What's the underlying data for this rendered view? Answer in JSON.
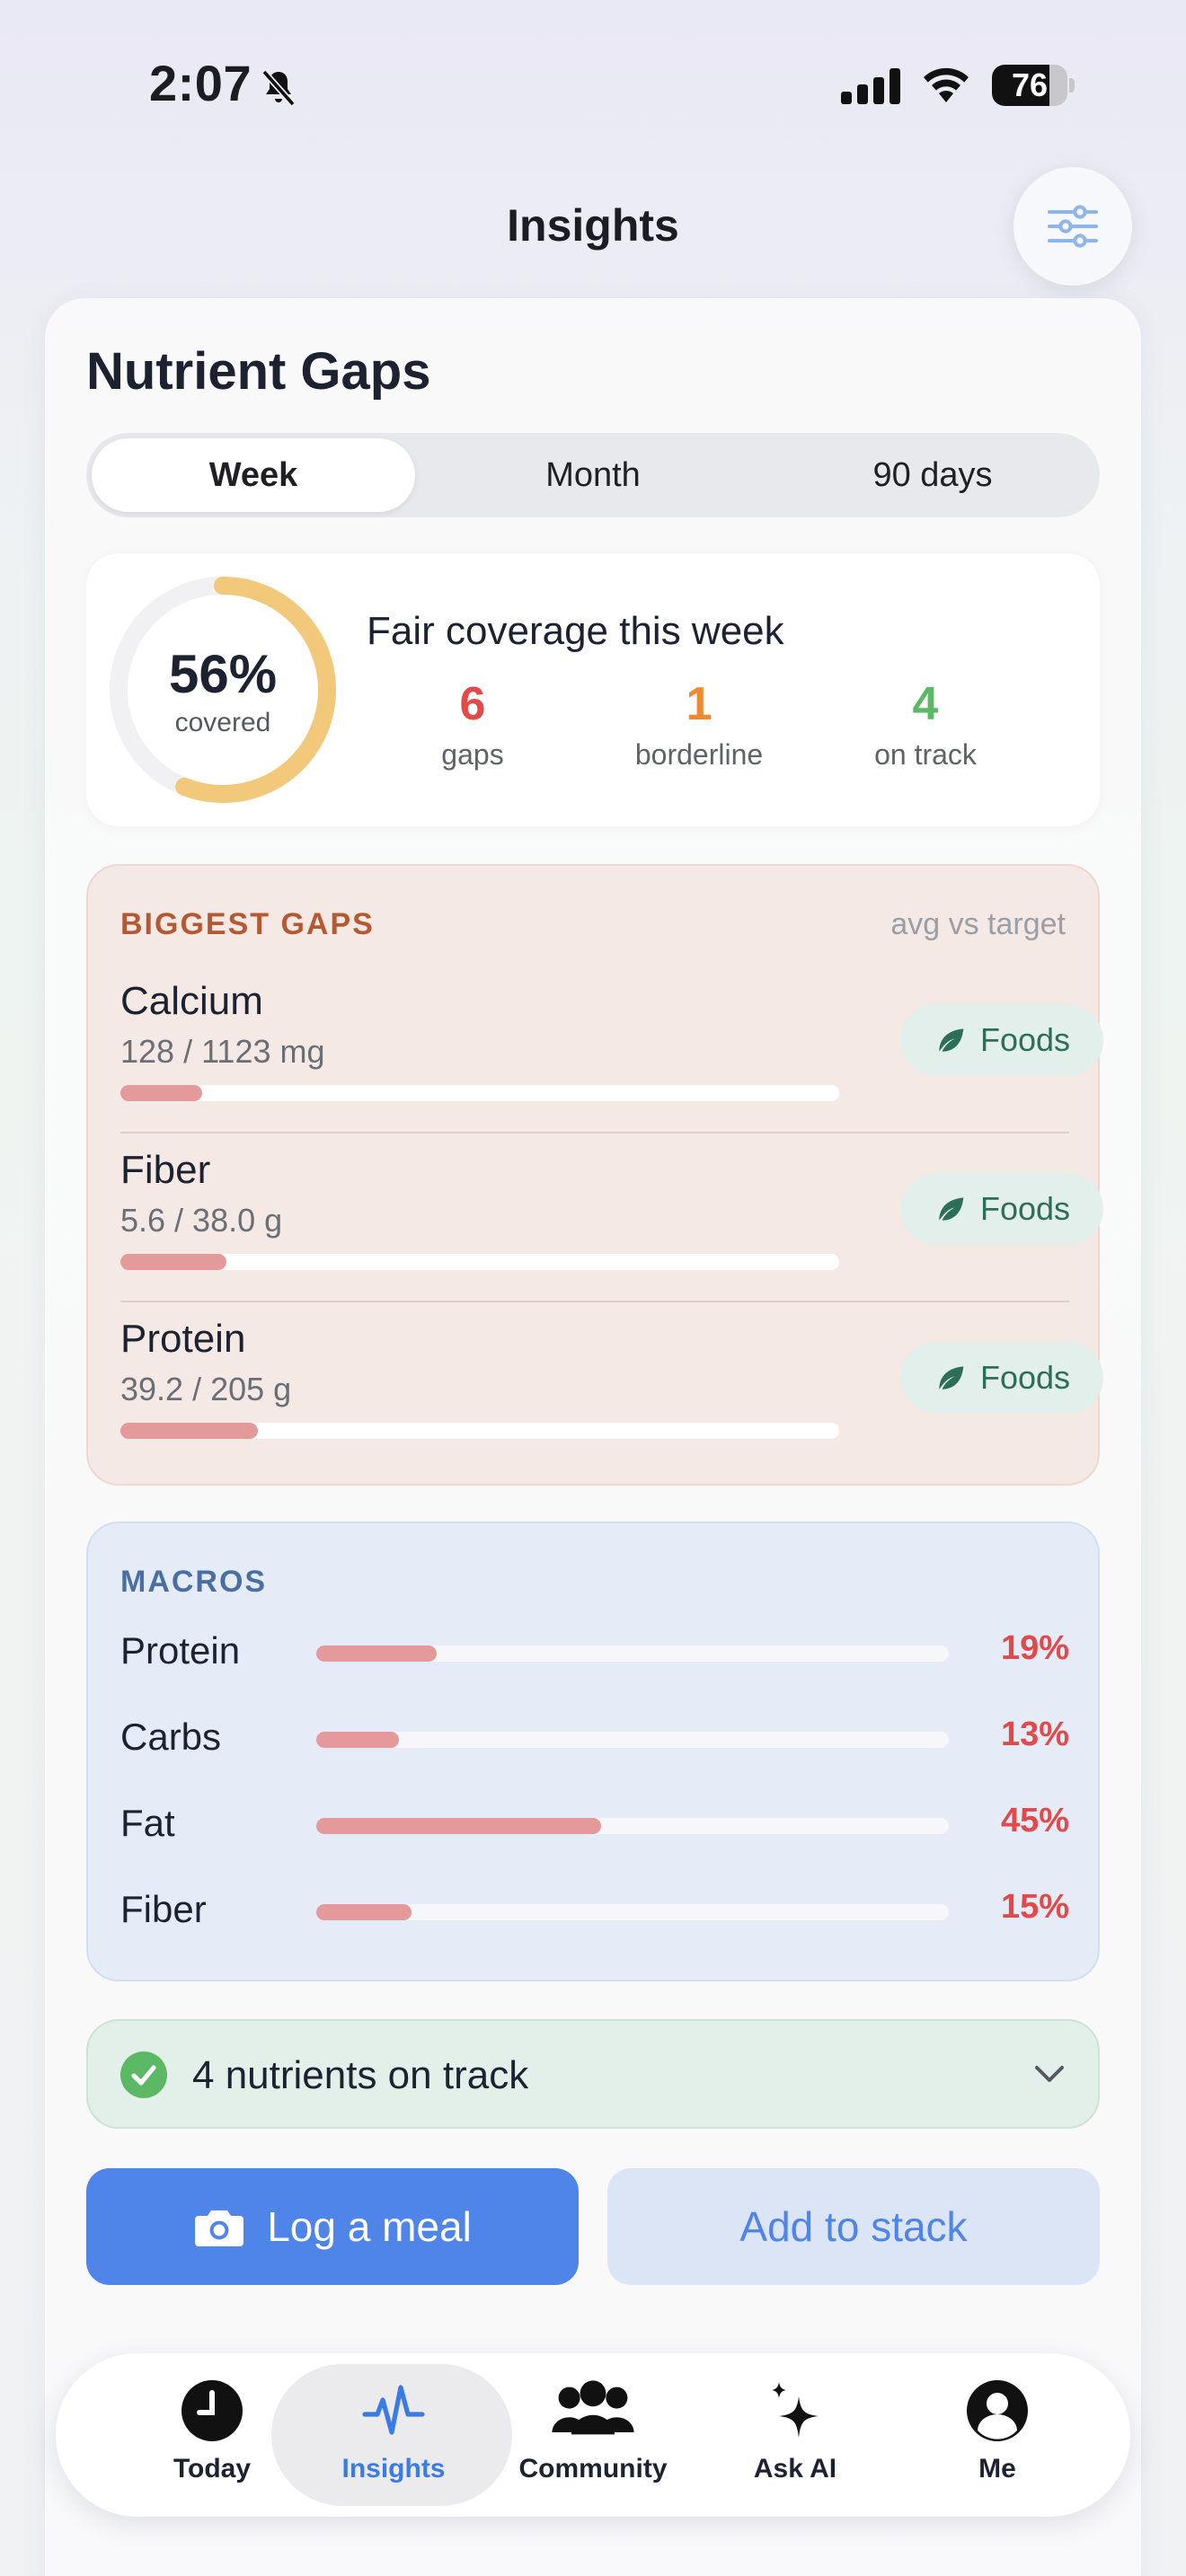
{
  "status_bar": {
    "time": "2:07",
    "battery": "76",
    "battery_level": 0.76
  },
  "header": {
    "title": "Insights",
    "filter_icon": "sliders-icon"
  },
  "nutrient_gaps": {
    "title": "Nutrient Gaps",
    "ranges": [
      {
        "label": "Week",
        "selected": true
      },
      {
        "label": "Month",
        "selected": false
      },
      {
        "label": "90 days",
        "selected": false
      }
    ],
    "coverage": {
      "percent_label": "56%",
      "percent_value": 0.56,
      "caption": "covered",
      "headline": "Fair coverage this week",
      "ring_color": "#f2c97b",
      "stats": [
        {
          "value": "6",
          "label": "gaps",
          "color": "#e24a4a"
        },
        {
          "value": "1",
          "label": "borderline",
          "color": "#f0892f"
        },
        {
          "value": "4",
          "label": "on track",
          "color": "#5bb865"
        }
      ]
    },
    "biggest_gaps": {
      "heading": "BIGGEST GAPS",
      "hint": "avg vs target",
      "heading_color": "#b25a33",
      "items": [
        {
          "name": "Calcium",
          "amount": "128 / 1123 mg",
          "progress": 0.114,
          "action": "Foods"
        },
        {
          "name": "Fiber",
          "amount": "5.6 / 38.0 g",
          "progress": 0.147,
          "action": "Foods"
        },
        {
          "name": "Protein",
          "amount": "39.2 / 205 g",
          "progress": 0.191,
          "action": "Foods"
        }
      ]
    },
    "macros": {
      "heading": "MACROS",
      "heading_color": "#4a6fa0",
      "items": [
        {
          "name": "Protein",
          "percent": "19%",
          "progress": 0.19
        },
        {
          "name": "Carbs",
          "percent": "13%",
          "progress": 0.13
        },
        {
          "name": "Fat",
          "percent": "45%",
          "progress": 0.45
        },
        {
          "name": "Fiber",
          "percent": "15%",
          "progress": 0.15
        }
      ]
    },
    "on_track": {
      "label": "4 nutrients on track"
    }
  },
  "actions": {
    "log_meal": "Log a meal",
    "add_to_stack": "Add to stack",
    "accent": "#4f84e8"
  },
  "tab_bar": {
    "tabs": [
      {
        "label": "Today",
        "icon": "clock-icon",
        "active": false
      },
      {
        "label": "Insights",
        "icon": "pulse-icon",
        "active": true
      },
      {
        "label": "Community",
        "icon": "people-icon",
        "active": false
      },
      {
        "label": "Ask AI",
        "icon": "sparkle-icon",
        "active": false
      },
      {
        "label": "Me",
        "icon": "person-icon",
        "active": false
      }
    ]
  }
}
